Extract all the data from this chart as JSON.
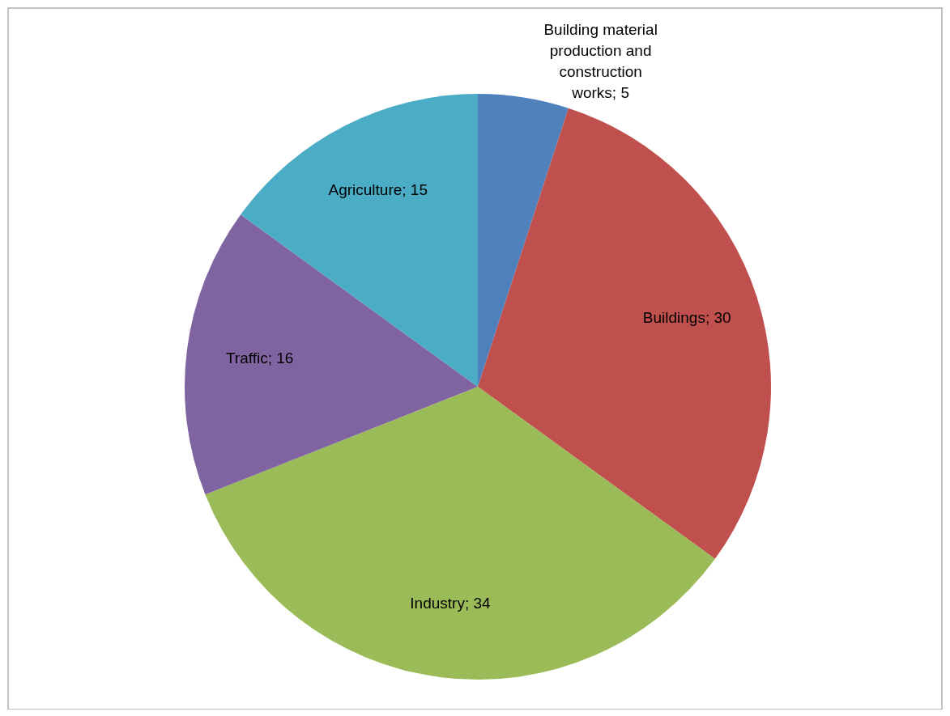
{
  "chart_data": {
    "type": "pie",
    "categories": [
      "Building material production and construction works",
      "Buildings",
      "Industry",
      "Traffic",
      "Agriculture"
    ],
    "values": [
      5,
      30,
      34,
      16,
      15
    ],
    "value_labels": [
      "; 5",
      "; 30",
      "; 34",
      "; 16",
      "; 15"
    ],
    "colors": [
      "#4f81bd",
      "#c0504d",
      "#9bbb59",
      "#8064a2",
      "#4bacc6"
    ]
  }
}
